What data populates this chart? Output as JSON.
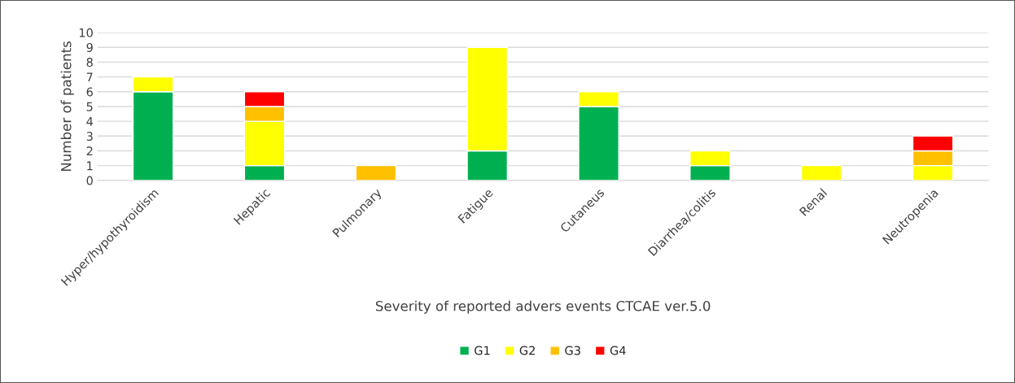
{
  "chart_data": {
    "type": "bar",
    "stacked": true,
    "categories": [
      "Hyper/hypothyroidism",
      "Hepatic",
      "Pulmonary",
      "Fatigue",
      "Cutaneus",
      "Diarrhea/colitis",
      "Renal",
      "Neutropenia"
    ],
    "series": [
      {
        "name": "G1",
        "color": "#00b050",
        "values": [
          6,
          1,
          null,
          2,
          5,
          1,
          null,
          null
        ]
      },
      {
        "name": "G2",
        "color": "#ffff00",
        "values": [
          1,
          3,
          null,
          7,
          1,
          1,
          1,
          1
        ]
      },
      {
        "name": "G3",
        "color": "#ffc000",
        "values": [
          null,
          1,
          1,
          null,
          null,
          null,
          null,
          1
        ]
      },
      {
        "name": "G4",
        "color": "#ff0000",
        "values": [
          null,
          1,
          null,
          null,
          null,
          null,
          null,
          1
        ]
      }
    ],
    "xlabel": "Severity of reported advers events CTCAE ver.5.0",
    "ylabel": "Number of patients",
    "ylim": [
      0,
      10
    ],
    "yticks": [
      0,
      1,
      2,
      3,
      4,
      5,
      6,
      7,
      8,
      9,
      10
    ],
    "grid": "y",
    "legend": "bottom"
  }
}
